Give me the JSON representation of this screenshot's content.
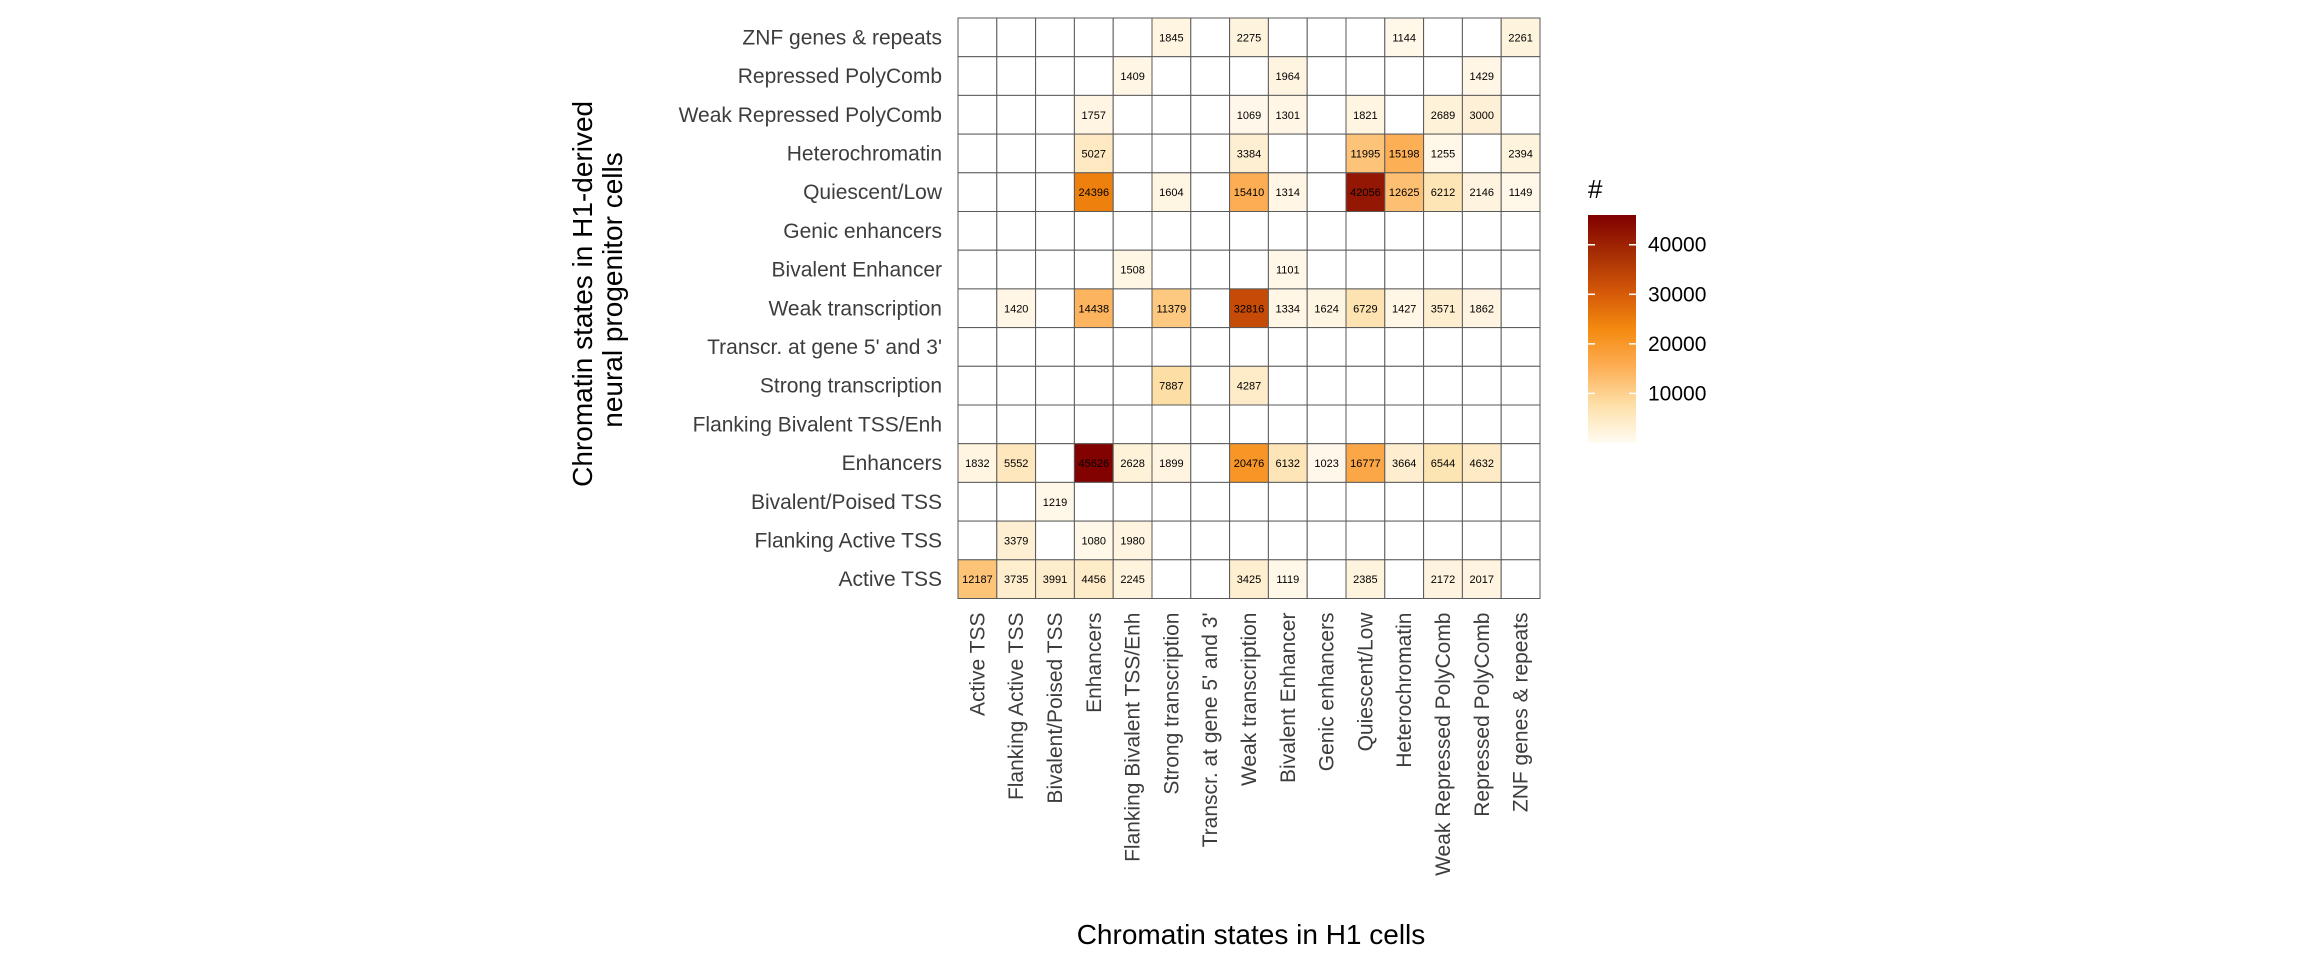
{
  "chart_data": {
    "type": "heatmap",
    "xlabel": "Chromatin states in H1 cells",
    "ylabel_lines": [
      "Chromatin states in H1-derived",
      "neural progenitor cells"
    ],
    "x_categories": [
      "Active TSS",
      "Flanking Active TSS",
      "Bivalent/Poised TSS",
      "Enhancers",
      "Flanking Bivalent TSS/Enh",
      "Strong transcription",
      "Transcr. at gene 5' and 3'",
      "Weak transcription",
      "Bivalent Enhancer",
      "Genic enhancers",
      "Quiescent/Low",
      "Heterochromatin",
      "Weak Repressed PolyComb",
      "Repressed PolyComb",
      "ZNF genes & repeats"
    ],
    "y_categories_top_to_bottom": [
      "ZNF genes & repeats",
      "Repressed PolyComb",
      "Weak Repressed PolyComb",
      "Heterochromatin",
      "Quiescent/Low",
      "Genic enhancers",
      "Bivalent Enhancer",
      "Weak transcription",
      "Transcr. at gene 5' and 3'",
      "Strong transcription",
      "Flanking Bivalent TSS/Enh",
      "Enhancers",
      "Bivalent/Poised TSS",
      "Flanking Active TSS",
      "Active TSS"
    ],
    "values": [
      [
        0,
        0,
        0,
        0,
        0,
        1845,
        0,
        2275,
        0,
        0,
        0,
        1144,
        0,
        0,
        2261
      ],
      [
        0,
        0,
        0,
        0,
        1409,
        0,
        0,
        0,
        1964,
        0,
        0,
        0,
        0,
        1429,
        0
      ],
      [
        0,
        0,
        0,
        1757,
        0,
        0,
        0,
        1069,
        1301,
        0,
        1821,
        0,
        2689,
        3000,
        0
      ],
      [
        0,
        0,
        0,
        5027,
        0,
        0,
        0,
        3384,
        0,
        0,
        11995,
        15198,
        1255,
        0,
        2394
      ],
      [
        0,
        0,
        0,
        24396,
        0,
        1604,
        0,
        15410,
        1314,
        0,
        42056,
        12625,
        6212,
        2146,
        1149
      ],
      [
        0,
        0,
        0,
        0,
        0,
        0,
        0,
        0,
        0,
        0,
        0,
        0,
        0,
        0,
        0
      ],
      [
        0,
        0,
        0,
        0,
        1508,
        0,
        0,
        0,
        1101,
        0,
        0,
        0,
        0,
        0,
        0
      ],
      [
        0,
        1420,
        0,
        14438,
        0,
        11379,
        0,
        32816,
        1334,
        1624,
        6729,
        1427,
        3571,
        1862,
        0
      ],
      [
        0,
        0,
        0,
        0,
        0,
        0,
        0,
        0,
        0,
        0,
        0,
        0,
        0,
        0,
        0
      ],
      [
        0,
        0,
        0,
        0,
        0,
        7887,
        0,
        4287,
        0,
        0,
        0,
        0,
        0,
        0,
        0
      ],
      [
        0,
        0,
        0,
        0,
        0,
        0,
        0,
        0,
        0,
        0,
        0,
        0,
        0,
        0,
        0
      ],
      [
        1832,
        5552,
        0,
        45626,
        2628,
        1899,
        0,
        20476,
        6132,
        1023,
        16777,
        3664,
        6544,
        4632,
        0
      ],
      [
        0,
        0,
        1219,
        0,
        0,
        0,
        0,
        0,
        0,
        0,
        0,
        0,
        0,
        0,
        0
      ],
      [
        0,
        3379,
        0,
        1080,
        1980,
        0,
        0,
        0,
        0,
        0,
        0,
        0,
        0,
        0,
        0
      ],
      [
        12187,
        3735,
        3991,
        4456,
        2245,
        0,
        0,
        3425,
        1119,
        0,
        2385,
        0,
        2172,
        2017,
        0
      ]
    ],
    "cell_labels": [
      [
        "",
        "",
        "",
        "",
        "",
        "1845",
        "",
        "2275",
        "",
        "",
        "",
        "1144",
        "",
        "",
        "2261"
      ],
      [
        "",
        "",
        "",
        "",
        "1409",
        "",
        "",
        "",
        "1964",
        "",
        "",
        "",
        "",
        "1429",
        ""
      ],
      [
        "",
        "",
        "",
        "1757",
        "",
        "",
        "",
        "1069",
        "1301",
        "",
        "1821",
        "",
        "2689",
        "3000",
        ""
      ],
      [
        "",
        "",
        "",
        "5027",
        "",
        "",
        "",
        "3384",
        "",
        "",
        "11995",
        "15198",
        "1255",
        "",
        "2394"
      ],
      [
        "",
        "",
        "",
        "24396",
        "",
        "1604",
        "",
        "15410",
        "1314",
        "",
        "42056",
        "12625",
        "6212",
        "2146",
        "1149"
      ],
      [
        "",
        "",
        "",
        "",
        "",
        "",
        "",
        "",
        "",
        "",
        "",
        "",
        "",
        "",
        ""
      ],
      [
        "",
        "",
        "",
        "",
        "1508",
        "",
        "",
        "",
        "1101",
        "",
        "",
        "",
        "",
        "",
        ""
      ],
      [
        "",
        "1420",
        "",
        "14438",
        "",
        "11379",
        "",
        "32816",
        "1334",
        "1624",
        "6729",
        "1427",
        "3571",
        "1862",
        ""
      ],
      [
        "",
        "",
        "",
        "",
        "",
        "",
        "",
        "",
        "",
        "",
        "",
        "",
        "",
        "",
        ""
      ],
      [
        "",
        "",
        "",
        "",
        "",
        "7887",
        "",
        "4287",
        "",
        "",
        "",
        "",
        "",
        "",
        ""
      ],
      [
        "",
        "",
        "",
        "",
        "",
        "",
        "",
        "",
        "",
        "",
        "",
        "",
        "",
        "",
        ""
      ],
      [
        "1832",
        "5552",
        "",
        "45626",
        "2628",
        "1899",
        "",
        "20476",
        "6132",
        "1023",
        "16777",
        "3664",
        "6544",
        "4632",
        ""
      ],
      [
        "",
        "",
        "1219",
        "",
        "",
        "",
        "",
        "",
        "",
        "",
        "",
        "",
        "",
        "",
        ""
      ],
      [
        "",
        "3379",
        "",
        "1080",
        "1980",
        "",
        "",
        "",
        "",
        "",
        "",
        "",
        "",
        "",
        ""
      ],
      [
        "12187",
        "3735",
        "3991",
        "4456",
        "2245",
        "",
        "",
        "3425",
        "1119",
        "",
        "2385",
        "",
        "2172",
        "2017",
        ""
      ]
    ],
    "colorbar": {
      "title": "#",
      "min": 0,
      "max": 46000,
      "ticks": [
        10000,
        20000,
        30000,
        40000
      ],
      "tick_labels": [
        "10000",
        "20000",
        "30000",
        "40000"
      ],
      "colors": [
        "#fffbf3",
        "#fde0a8",
        "#fdae55",
        "#f48a0f",
        "#d35708",
        "#a52d04",
        "#7f0000"
      ]
    },
    "grid": true,
    "legend_position": "right"
  }
}
